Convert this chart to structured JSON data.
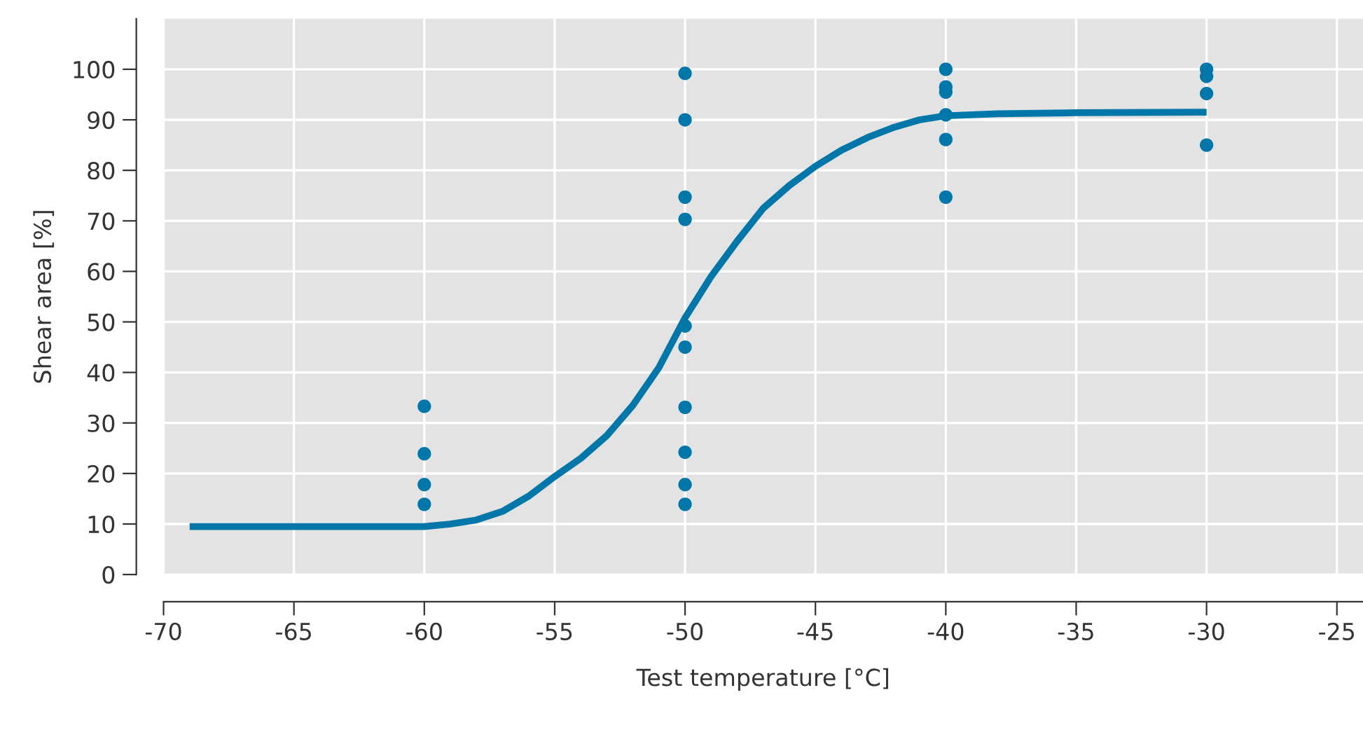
{
  "chart_data": {
    "type": "scatter",
    "xlabel": "Test temperature [°C]",
    "ylabel": "Shear area [%]",
    "xlim": [
      -70,
      -24
    ],
    "xticks": [
      -70,
      -65,
      -60,
      -55,
      -50,
      -45,
      -40,
      -35,
      -30,
      -25
    ],
    "ylim": [
      0,
      110
    ],
    "yticks": [
      0,
      10,
      20,
      30,
      40,
      50,
      60,
      70,
      80,
      90,
      100
    ],
    "grid": true,
    "marker": "circle",
    "series": [
      {
        "color": "#0077a8",
        "x": [
          -60,
          -60,
          -60,
          -60,
          -50,
          -50,
          -50,
          -50,
          -50,
          -50,
          -50,
          -50,
          -50,
          -50,
          -40,
          -40,
          -40,
          -40,
          -40,
          -40,
          -30,
          -30,
          -30,
          -30
        ],
        "values": [
          33.3,
          23.9,
          17.8,
          13.9,
          99.2,
          90,
          74.7,
          70.3,
          49.2,
          45,
          33.1,
          24.2,
          17.8,
          13.9,
          100,
          96.5,
          95.5,
          91,
          86.1,
          74.7,
          100,
          98.6,
          95.2,
          85
        ]
      },
      {
        "type": "line",
        "color": "#0077a8",
        "marker": "none",
        "line_style": "solid",
        "x": [
          -69,
          -65,
          -60,
          -59,
          -58,
          -57,
          -56,
          -55,
          -54,
          -53,
          -52,
          -51,
          -50,
          -49,
          -48,
          -47,
          -46,
          -45,
          -44,
          -43,
          -42,
          -41,
          -40,
          -38,
          -35,
          -30
        ],
        "values": [
          9.5,
          9.5,
          9.5,
          10,
          10.8,
          12.5,
          15.5,
          19.4,
          23,
          27.5,
          33.5,
          41,
          50.8,
          59,
          66,
          72.5,
          77,
          80.8,
          84,
          86.5,
          88.5,
          90,
          90.8,
          91.2,
          91.4,
          91.5
        ]
      }
    ]
  }
}
